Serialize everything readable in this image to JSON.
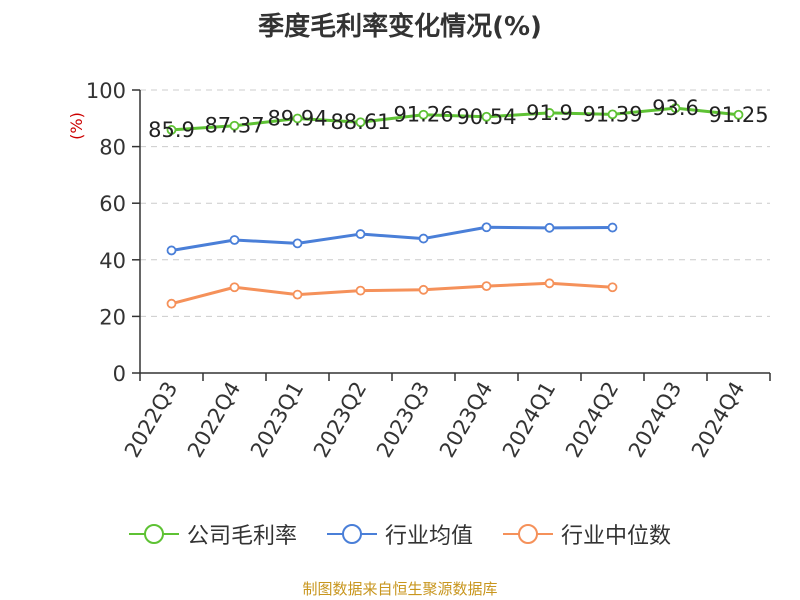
{
  "title": "季度毛利率变化情况(%)",
  "source": "制图数据来自恒生聚源数据库",
  "chart_data": {
    "type": "line",
    "title": "季度毛利率变化情况(%)",
    "ylabel": "(%)",
    "ylim": [
      0,
      100
    ],
    "yticks": [
      "0",
      "20",
      "40",
      "60",
      "80",
      "100"
    ],
    "categories": [
      "2022Q3",
      "2022Q4",
      "2023Q1",
      "2023Q2",
      "2023Q3",
      "2023Q4",
      "2024Q1",
      "2024Q2",
      "2024Q3",
      "2024Q4"
    ],
    "grid": true,
    "legend_position": "bottom",
    "series": [
      {
        "name": "公司毛利率",
        "color": "#5ec234",
        "values": [
          85.9,
          87.37,
          89.94,
          88.61,
          91.26,
          90.54,
          91.9,
          91.39,
          93.6,
          91.25
        ],
        "labels": [
          "85.9",
          "87.37",
          "89.94",
          "88.61",
          "91.26",
          "90.54",
          "91.9",
          "91.39",
          "93.6",
          "91.25"
        ]
      },
      {
        "name": "行业均值",
        "color": "#4a7fd8",
        "values": [
          43.3,
          47.0,
          45.8,
          49.1,
          47.5,
          51.5,
          51.3,
          51.4,
          null,
          null
        ]
      },
      {
        "name": "行业中位数",
        "color": "#f5915a",
        "values": [
          24.5,
          30.3,
          27.7,
          29.1,
          29.4,
          30.7,
          31.7,
          30.3,
          null,
          null
        ]
      }
    ]
  }
}
